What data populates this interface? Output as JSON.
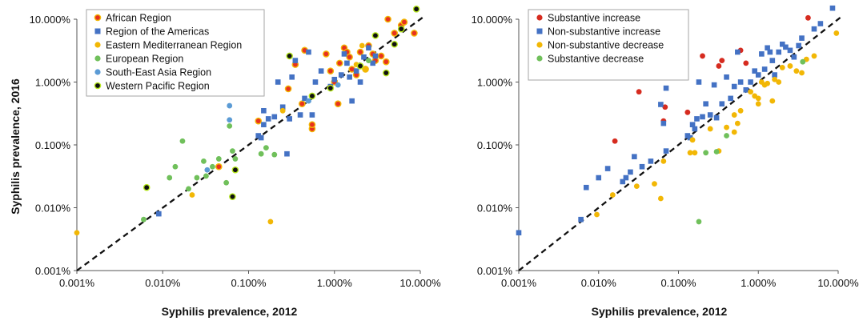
{
  "chart_data": [
    {
      "type": "scatter",
      "xlabel": "Syphilis prevalence, 2012",
      "ylabel": "Syphilis prevalence, 2016",
      "scale": "log",
      "xlim": [
        0.001,
        10
      ],
      "ylim": [
        0.001,
        10
      ],
      "xticks": [
        "0.001%",
        "0.010%",
        "0.100%",
        "1.000%",
        "10.000%"
      ],
      "yticks": [
        "0.001%",
        "0.010%",
        "0.100%",
        "1.000%",
        "10.000%"
      ],
      "reference_line": "y = x (dashed)",
      "grid": false,
      "legend_position": "top-left",
      "series": [
        {
          "name": "African Region",
          "marker": "circle",
          "color": "#e8321e",
          "stroke": "#f2b705",
          "points": [
            [
              0.13,
              0.24
            ],
            [
              0.29,
              0.78
            ],
            [
              0.35,
              1.9
            ],
            [
              0.42,
              0.45
            ],
            [
              0.45,
              3.2
            ],
            [
              0.55,
              0.18
            ],
            [
              0.55,
              0.21
            ],
            [
              0.8,
              2.8
            ],
            [
              0.9,
              1.5
            ],
            [
              1.0,
              1.0
            ],
            [
              1.1,
              0.45
            ],
            [
              1.15,
              2.0
            ],
            [
              1.3,
              3.5
            ],
            [
              1.4,
              3.0
            ],
            [
              1.5,
              2.5
            ],
            [
              1.6,
              1.6
            ],
            [
              1.8,
              1.3
            ],
            [
              2.0,
              3.0
            ],
            [
              2.3,
              1.6
            ],
            [
              2.5,
              3.8
            ],
            [
              2.8,
              2.8
            ],
            [
              3.0,
              2.2
            ],
            [
              3.5,
              2.6
            ],
            [
              4.0,
              2.1
            ],
            [
              4.2,
              10.0
            ],
            [
              5.0,
              6.0
            ],
            [
              6.0,
              8.0
            ],
            [
              6.5,
              9.0
            ],
            [
              8.5,
              6.0
            ],
            [
              0.045,
              0.045
            ]
          ]
        },
        {
          "name": "Region of the Americas",
          "marker": "square",
          "color": "#4472c4",
          "points": [
            [
              0.009,
              0.008
            ],
            [
              0.13,
              0.14
            ],
            [
              0.14,
              0.13
            ],
            [
              0.15,
              0.21
            ],
            [
              0.15,
              0.35
            ],
            [
              0.17,
              0.26
            ],
            [
              0.2,
              0.28
            ],
            [
              0.22,
              1.0
            ],
            [
              0.25,
              0.4
            ],
            [
              0.28,
              0.072
            ],
            [
              0.3,
              0.26
            ],
            [
              0.32,
              1.2
            ],
            [
              0.35,
              2.2
            ],
            [
              0.4,
              0.3
            ],
            [
              0.45,
              0.55
            ],
            [
              0.5,
              3.0
            ],
            [
              0.55,
              0.3
            ],
            [
              0.6,
              1.0
            ],
            [
              0.7,
              1.5
            ],
            [
              0.9,
              0.85
            ],
            [
              1.0,
              1.1
            ],
            [
              1.2,
              1.3
            ],
            [
              1.3,
              2.8
            ],
            [
              1.4,
              2.0
            ],
            [
              1.5,
              1.2
            ],
            [
              1.6,
              0.5
            ],
            [
              1.8,
              1.5
            ],
            [
              2.0,
              1.0
            ],
            [
              2.2,
              2.5
            ],
            [
              2.5,
              3.5
            ],
            [
              2.8,
              2.0
            ],
            [
              3.0,
              2.6
            ]
          ]
        },
        {
          "name": "Eastern Mediterranean Region",
          "marker": "circle",
          "color": "#f2b705",
          "points": [
            [
              0.001,
              0.004
            ],
            [
              0.022,
              0.016
            ],
            [
              0.18,
              0.006
            ],
            [
              0.25,
              0.35
            ],
            [
              1.8,
              1.9
            ],
            [
              2.1,
              3.8
            ],
            [
              2.3,
              1.6
            ]
          ]
        },
        {
          "name": "European Region",
          "marker": "circle",
          "color": "#70c05b",
          "points": [
            [
              0.006,
              0.0065
            ],
            [
              0.012,
              0.03
            ],
            [
              0.014,
              0.045
            ],
            [
              0.017,
              0.115
            ],
            [
              0.02,
              0.02
            ],
            [
              0.025,
              0.03
            ],
            [
              0.03,
              0.055
            ],
            [
              0.032,
              0.032
            ],
            [
              0.038,
              0.045
            ],
            [
              0.045,
              0.06
            ],
            [
              0.055,
              0.025
            ],
            [
              0.06,
              0.2
            ],
            [
              0.065,
              0.08
            ],
            [
              0.07,
              0.06
            ],
            [
              0.14,
              0.072
            ],
            [
              0.16,
              0.09
            ],
            [
              0.2,
              0.07
            ],
            [
              2.5,
              2.2
            ]
          ]
        },
        {
          "name": "South-East Asia Region",
          "marker": "circle",
          "color": "#5b9bd5",
          "points": [
            [
              0.033,
              0.04
            ],
            [
              0.06,
              0.25
            ],
            [
              0.06,
              0.42
            ],
            [
              0.5,
              0.5
            ],
            [
              0.55,
              0.6
            ],
            [
              1.1,
              0.9
            ]
          ]
        },
        {
          "name": "Western Pacific Region",
          "marker": "circle",
          "color": "#111111",
          "stroke": "#b5e61d",
          "points": [
            [
              0.0065,
              0.021
            ],
            [
              0.028,
              0.7
            ],
            [
              0.065,
              0.015
            ],
            [
              0.07,
              0.04
            ],
            [
              0.3,
              2.6
            ],
            [
              0.55,
              0.6
            ],
            [
              0.9,
              0.8
            ],
            [
              2.0,
              1.8
            ],
            [
              3.0,
              5.5
            ],
            [
              4.0,
              1.4
            ],
            [
              5.0,
              4.0
            ],
            [
              6.0,
              7.0
            ],
            [
              9.0,
              14.5
            ]
          ]
        }
      ]
    },
    {
      "type": "scatter",
      "xlabel": "Syphilis prevalence, 2012",
      "ylabel": "",
      "scale": "log",
      "xlim": [
        0.001,
        10
      ],
      "ylim": [
        0.001,
        10
      ],
      "xticks": [
        "0.001%",
        "0.010%",
        "0.100%",
        "1.000%",
        "10.000%"
      ],
      "yticks": [
        "0.001%",
        "0.010%",
        "0.100%",
        "1.000%",
        "10.000%"
      ],
      "reference_line": "y = x (dashed)",
      "grid": false,
      "legend_position": "top-left",
      "series": [
        {
          "name": "Substantive increase",
          "marker": "circle",
          "color": "#d62b1f",
          "points": [
            [
              0.016,
              0.115
            ],
            [
              0.032,
              0.7
            ],
            [
              0.065,
              0.24
            ],
            [
              0.068,
              0.4
            ],
            [
              0.13,
              0.33
            ],
            [
              0.2,
              2.6
            ],
            [
              0.32,
              1.8
            ],
            [
              0.35,
              2.2
            ],
            [
              0.7,
              2.0
            ],
            [
              0.6,
              3.2
            ],
            [
              4.2,
              10.5
            ]
          ]
        },
        {
          "name": "Non-substantive increase",
          "marker": "square",
          "color": "#4472c4",
          "points": [
            [
              0.001,
              0.004
            ],
            [
              0.006,
              0.0065
            ],
            [
              0.007,
              0.021
            ],
            [
              0.01,
              0.03
            ],
            [
              0.013,
              0.042
            ],
            [
              0.02,
              0.026
            ],
            [
              0.022,
              0.03
            ],
            [
              0.025,
              0.037
            ],
            [
              0.028,
              0.065
            ],
            [
              0.035,
              0.045
            ],
            [
              0.045,
              0.055
            ],
            [
              0.06,
              0.44
            ],
            [
              0.065,
              0.22
            ],
            [
              0.07,
              0.8
            ],
            [
              0.07,
              0.08
            ],
            [
              0.13,
              0.14
            ],
            [
              0.14,
              0.13
            ],
            [
              0.15,
              0.21
            ],
            [
              0.16,
              0.18
            ],
            [
              0.17,
              0.26
            ],
            [
              0.18,
              1.0
            ],
            [
              0.2,
              0.28
            ],
            [
              0.22,
              0.45
            ],
            [
              0.25,
              0.3
            ],
            [
              0.28,
              0.9
            ],
            [
              0.3,
              0.27
            ],
            [
              0.35,
              0.45
            ],
            [
              0.4,
              1.2
            ],
            [
              0.45,
              0.55
            ],
            [
              0.5,
              0.85
            ],
            [
              0.55,
              3.0
            ],
            [
              0.6,
              1.0
            ],
            [
              0.7,
              0.75
            ],
            [
              0.8,
              1.0
            ],
            [
              0.9,
              1.5
            ],
            [
              1.0,
              1.3
            ],
            [
              1.1,
              2.8
            ],
            [
              1.2,
              1.6
            ],
            [
              1.3,
              3.5
            ],
            [
              1.4,
              3.0
            ],
            [
              1.5,
              2.2
            ],
            [
              1.6,
              1.3
            ],
            [
              1.8,
              3.0
            ],
            [
              2.0,
              4.0
            ],
            [
              2.2,
              3.6
            ],
            [
              2.5,
              3.2
            ],
            [
              2.8,
              2.5
            ],
            [
              3.2,
              3.8
            ],
            [
              3.5,
              5.0
            ],
            [
              5.0,
              7.0
            ],
            [
              6.0,
              8.5
            ],
            [
              8.5,
              15.0
            ]
          ]
        },
        {
          "name": "Non-substantive decrease",
          "marker": "circle",
          "color": "#f2b705",
          "points": [
            [
              0.0095,
              0.0078
            ],
            [
              0.015,
              0.016
            ],
            [
              0.03,
              0.022
            ],
            [
              0.05,
              0.024
            ],
            [
              0.06,
              0.014
            ],
            [
              0.065,
              0.055
            ],
            [
              0.14,
              0.075
            ],
            [
              0.15,
              0.12
            ],
            [
              0.16,
              0.075
            ],
            [
              0.25,
              0.18
            ],
            [
              0.32,
              0.08
            ],
            [
              0.4,
              0.19
            ],
            [
              0.5,
              0.16
            ],
            [
              0.5,
              0.3
            ],
            [
              0.55,
              0.22
            ],
            [
              0.6,
              0.35
            ],
            [
              0.8,
              0.7
            ],
            [
              0.9,
              0.6
            ],
            [
              1.0,
              0.55
            ],
            [
              1.0,
              0.45
            ],
            [
              1.1,
              1.0
            ],
            [
              1.2,
              0.9
            ],
            [
              1.3,
              0.95
            ],
            [
              1.5,
              0.5
            ],
            [
              1.6,
              1.1
            ],
            [
              1.8,
              1.0
            ],
            [
              2.0,
              1.7
            ],
            [
              2.5,
              1.8
            ],
            [
              3.0,
              1.5
            ],
            [
              3.5,
              1.4
            ],
            [
              4.0,
              2.3
            ],
            [
              5.0,
              2.6
            ],
            [
              9.5,
              6.0
            ]
          ]
        },
        {
          "name": "Substantive decrease",
          "marker": "circle",
          "color": "#70c05b",
          "points": [
            [
              0.18,
              0.006
            ],
            [
              0.22,
              0.075
            ],
            [
              0.3,
              0.078
            ],
            [
              0.4,
              0.14
            ],
            [
              3.6,
              2.1
            ]
          ]
        }
      ]
    }
  ]
}
